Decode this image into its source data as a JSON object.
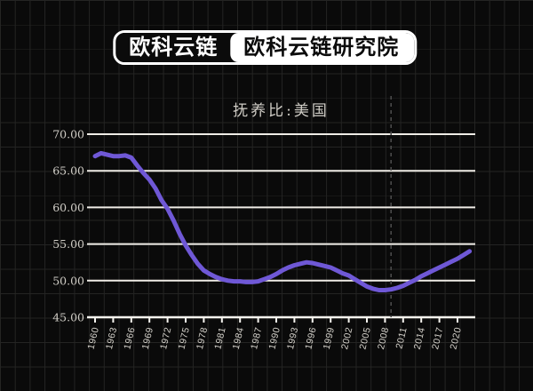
{
  "header": {
    "brand": "欧科云链",
    "institute": "欧科云链研究院"
  },
  "chart_data": {
    "type": "line",
    "title": "抚养比:美国",
    "xlabel": "",
    "ylabel": "",
    "ylim": [
      45,
      70
    ],
    "xlim": [
      1959.5,
      2023
    ],
    "grid": "horizontal-only",
    "legend_position": "none",
    "y_tick_labels": [
      "70.00",
      "65.00",
      "60.00",
      "55.00",
      "50.00",
      "45.00"
    ],
    "y_tick_values": [
      70,
      65,
      60,
      55,
      50,
      45
    ],
    "x_tick_labels": [
      "1960",
      "1963",
      "1966",
      "1969",
      "1972",
      "1975",
      "1978",
      "1981",
      "1984",
      "1987",
      "1990",
      "1993",
      "1996",
      "1999",
      "2002",
      "2005",
      "2008",
      "2011",
      "2014",
      "2017",
      "2020"
    ],
    "annotation_dashed_line_year": 2009,
    "series": [
      {
        "name": "抚养比:美国",
        "x": [
          1960,
          1961,
          1962,
          1963,
          1964,
          1965,
          1966,
          1967,
          1968,
          1969,
          1970,
          1971,
          1972,
          1973,
          1974,
          1975,
          1976,
          1977,
          1978,
          1979,
          1980,
          1981,
          1982,
          1983,
          1984,
          1985,
          1986,
          1987,
          1988,
          1989,
          1990,
          1991,
          1992,
          1993,
          1994,
          1995,
          1996,
          1997,
          1998,
          1999,
          2000,
          2001,
          2002,
          2003,
          2004,
          2005,
          2006,
          2007,
          2008,
          2009,
          2010,
          2011,
          2012,
          2013,
          2014,
          2015,
          2016,
          2017,
          2018,
          2019,
          2020,
          2021,
          2022
        ],
        "values": [
          67.0,
          67.4,
          67.2,
          67.0,
          67.0,
          67.1,
          66.8,
          65.7,
          64.7,
          63.8,
          62.6,
          61.0,
          59.8,
          58.2,
          56.4,
          54.8,
          53.5,
          52.3,
          51.4,
          50.9,
          50.5,
          50.2,
          50.0,
          49.9,
          49.9,
          49.8,
          49.8,
          49.9,
          50.2,
          50.5,
          50.9,
          51.4,
          51.8,
          52.1,
          52.3,
          52.5,
          52.4,
          52.2,
          52.0,
          51.8,
          51.4,
          51.0,
          50.7,
          50.2,
          49.7,
          49.2,
          48.9,
          48.7,
          48.7,
          48.8,
          49.0,
          49.3,
          49.7,
          50.1,
          50.6,
          51.0,
          51.4,
          51.8,
          52.2,
          52.6,
          53.0,
          53.5,
          54.0
        ]
      }
    ],
    "colors": {
      "line": "#6f58d6",
      "gridline": "#efece6",
      "axis": "#f5f3ee",
      "dashed_marker": "#4a4a4a",
      "tick_label": "#d6d3cc",
      "background": "#0a0a0a"
    }
  }
}
